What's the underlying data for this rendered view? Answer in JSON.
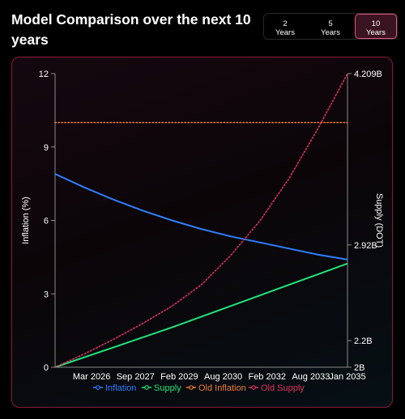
{
  "header": {
    "title": "Model Comparison over the next 10 years",
    "ranges": [
      {
        "top": "2",
        "bottom": "Years",
        "active": false
      },
      {
        "top": "5",
        "bottom": "Years",
        "active": false
      },
      {
        "top": "10",
        "bottom": "Years",
        "active": true
      }
    ]
  },
  "colors": {
    "inflation": "#2f7fff",
    "supply": "#22e37a",
    "old_inflation": "#f07d3a",
    "old_supply": "#e0325f",
    "accent": "#e6537d"
  },
  "chart_data": {
    "type": "line",
    "ylabel": "Inflation (%)",
    "ylabel_right": "Supply (DOT)",
    "y_ticks": [
      "0",
      "3",
      "6",
      "9",
      "12"
    ],
    "ylim": [
      0,
      12
    ],
    "y2_ticks": [
      "2B",
      "2.2B",
      "2.92B",
      "4.209B"
    ],
    "y2_tick_values": [
      2.0,
      2.2,
      2.92,
      4.209
    ],
    "y2lim": [
      2.0,
      4.209
    ],
    "x_ticks": [
      "Mar 2026",
      "Sep 2027",
      "Feb 2029",
      "Aug 2030",
      "Feb 2032",
      "Aug 2033",
      "Jan 2035"
    ],
    "x_tick_positions": [
      1.25,
      2.75,
      4.25,
      5.75,
      7.25,
      8.75,
      10.0
    ],
    "xlim": [
      0,
      10
    ],
    "legend_position": "bottom",
    "series": [
      {
        "name": "Inflation",
        "axis": "left",
        "style": "solid",
        "x": [
          0,
          1,
          2,
          3,
          4,
          5,
          6,
          7,
          8,
          9,
          10
        ],
        "y": [
          7.9,
          7.35,
          6.85,
          6.4,
          6.0,
          5.65,
          5.35,
          5.1,
          4.85,
          4.6,
          4.4
        ]
      },
      {
        "name": "Supply",
        "axis": "right",
        "style": "solid",
        "x": [
          0,
          2,
          4,
          6,
          8,
          10
        ],
        "y": [
          2.0,
          2.15,
          2.3,
          2.46,
          2.62,
          2.78
        ]
      },
      {
        "name": "Old Inflation",
        "axis": "left",
        "style": "dotted",
        "x": [
          0,
          10
        ],
        "y": [
          10,
          10
        ]
      },
      {
        "name": "Old Supply",
        "axis": "right",
        "style": "dotted",
        "x": [
          0,
          1,
          2,
          3,
          4,
          5,
          6,
          7,
          8,
          9,
          10
        ],
        "y": [
          2.0,
          2.1,
          2.21,
          2.33,
          2.46,
          2.62,
          2.84,
          3.1,
          3.42,
          3.8,
          4.209
        ]
      }
    ]
  }
}
